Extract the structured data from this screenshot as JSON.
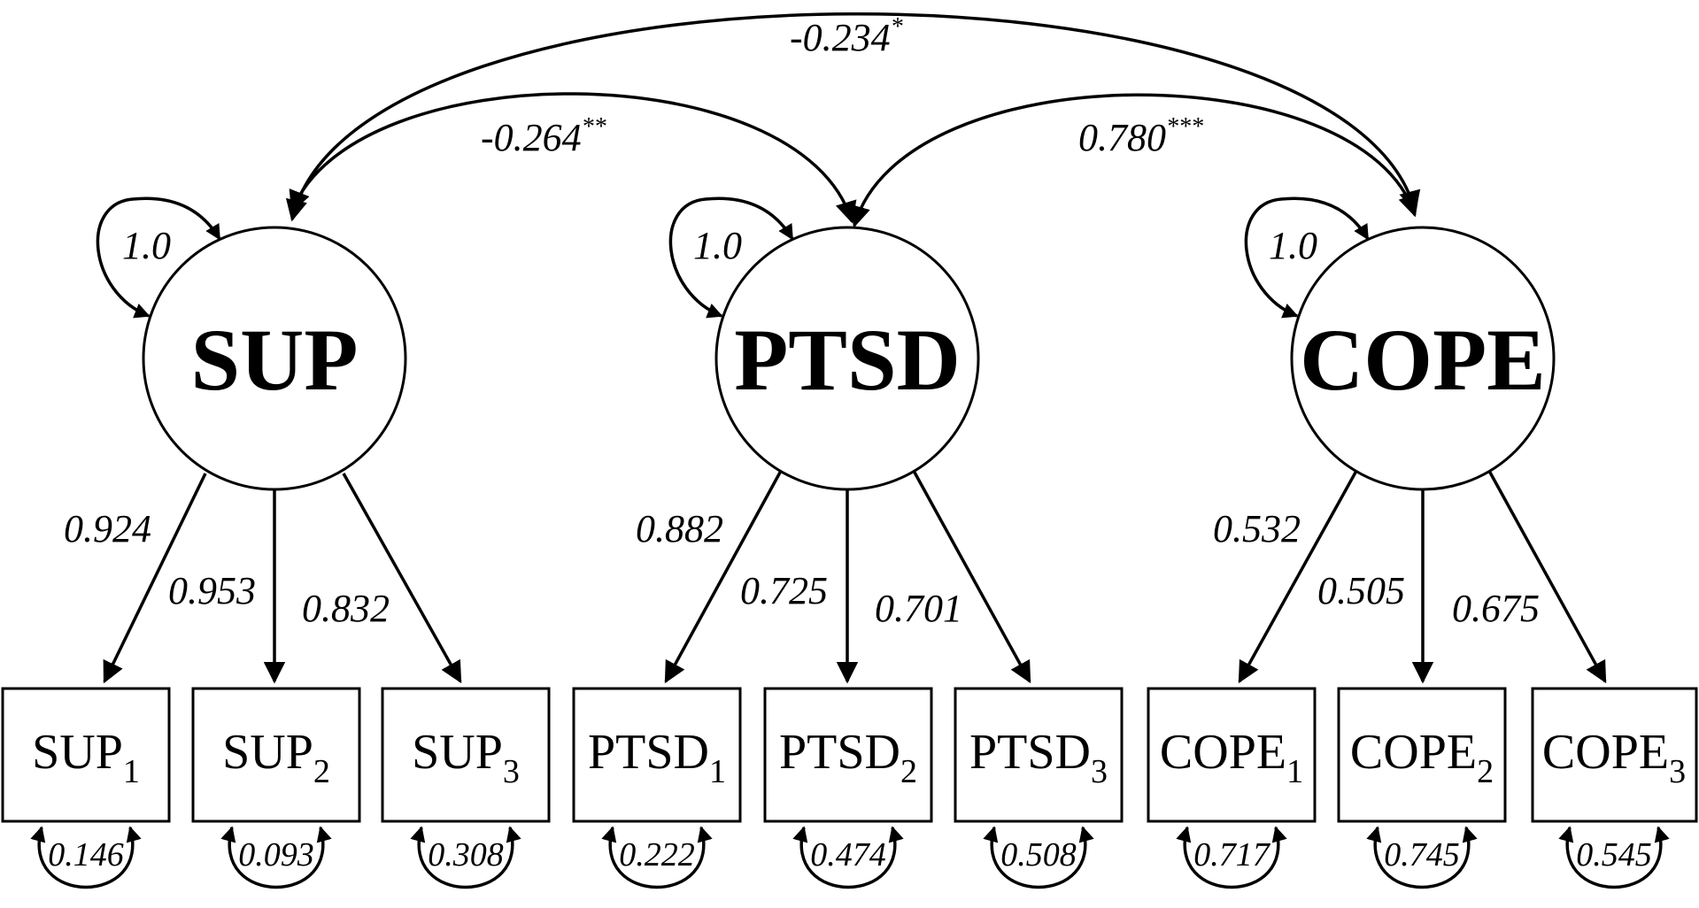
{
  "latents": [
    {
      "id": "sup",
      "label": "SUP",
      "variance": "1.0"
    },
    {
      "id": "ptsd",
      "label": "PTSD",
      "variance": "1.0"
    },
    {
      "id": "cope",
      "label": "COPE",
      "variance": "1.0"
    }
  ],
  "indicators": [
    {
      "base": "SUP",
      "sub": "1",
      "loading": "0.924",
      "error": "0.146"
    },
    {
      "base": "SUP",
      "sub": "2",
      "loading": "0.953",
      "error": "0.093"
    },
    {
      "base": "SUP",
      "sub": "3",
      "loading": "0.832",
      "error": "0.308"
    },
    {
      "base": "PTSD",
      "sub": "1",
      "loading": "0.882",
      "error": "0.222"
    },
    {
      "base": "PTSD",
      "sub": "2",
      "loading": "0.725",
      "error": "0.474"
    },
    {
      "base": "PTSD",
      "sub": "3",
      "loading": "0.701",
      "error": "0.508"
    },
    {
      "base": "COPE",
      "sub": "1",
      "loading": "0.532",
      "error": "0.717"
    },
    {
      "base": "COPE",
      "sub": "2",
      "loading": "0.505",
      "error": "0.745"
    },
    {
      "base": "COPE",
      "sub": "3",
      "loading": "0.675",
      "error": "0.545"
    }
  ],
  "covariances": {
    "sup_cope": {
      "value": "-0.234",
      "sig": "*"
    },
    "sup_ptsd": {
      "value": "-0.264",
      "sig": "**"
    },
    "ptsd_cope": {
      "value": "0.780",
      "sig": "***"
    }
  }
}
